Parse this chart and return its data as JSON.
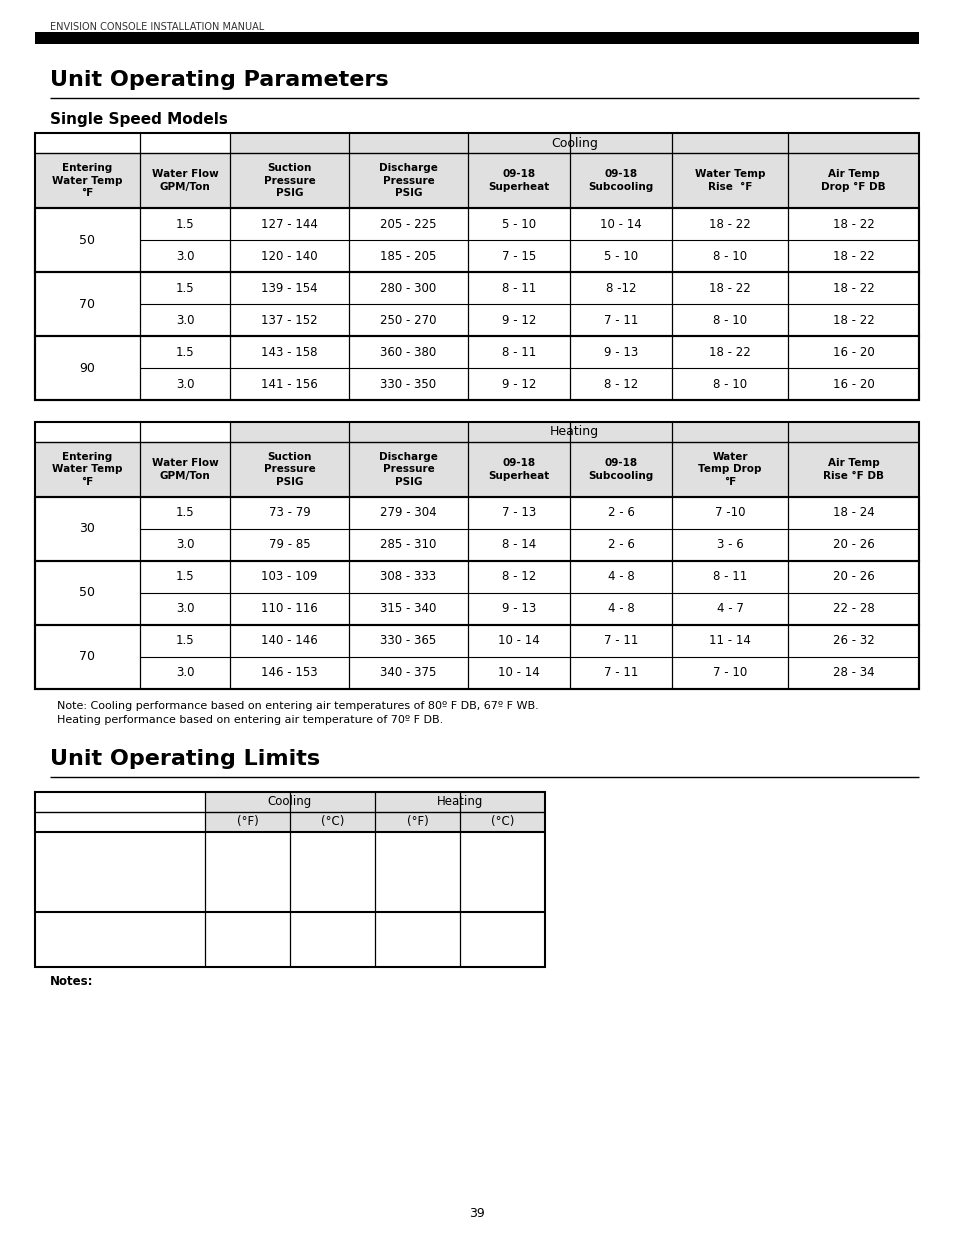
{
  "page_header": "ENVISION CONSOLE INSTALLATION MANUAL",
  "title1": "Unit Operating Parameters",
  "subtitle1": "Single Speed Models",
  "title2": "Unit Operating Limits",
  "cooling_col_headers": [
    "Entering\nWater Temp\n°F",
    "Water Flow\nGPM/Ton",
    "Suction\nPressure\nPSIG",
    "Discharge\nPressure\nPSIG",
    "09-18\nSuperheat",
    "09-18\nSubcooling",
    "Water Temp\nRise  °F",
    "Air Temp\nDrop °F DB"
  ],
  "cooling_rows": [
    [
      "50",
      "1.5",
      "127 - 144",
      "205 - 225",
      "5 - 10",
      "10 - 14",
      "18 - 22",
      "18 - 22"
    ],
    [
      "50",
      "3.0",
      "120 - 140",
      "185 - 205",
      "7 - 15",
      "5 - 10",
      "8 - 10",
      "18 - 22"
    ],
    [
      "70",
      "1.5",
      "139 - 154",
      "280 - 300",
      "8 - 11",
      "8 -12",
      "18 - 22",
      "18 - 22"
    ],
    [
      "70",
      "3.0",
      "137 - 152",
      "250 - 270",
      "9 - 12",
      "7 - 11",
      "8 - 10",
      "18 - 22"
    ],
    [
      "90",
      "1.5",
      "143 - 158",
      "360 - 380",
      "8 - 11",
      "9 - 13",
      "18 - 22",
      "16 - 20"
    ],
    [
      "90",
      "3.0",
      "141 - 156",
      "330 - 350",
      "9 - 12",
      "8 - 12",
      "8 - 10",
      "16 - 20"
    ]
  ],
  "cooling_groups": [
    {
      "temp": "50",
      "rows": [
        0,
        1
      ]
    },
    {
      "temp": "70",
      "rows": [
        2,
        3
      ]
    },
    {
      "temp": "90",
      "rows": [
        4,
        5
      ]
    }
  ],
  "heating_col_headers": [
    "Entering\nWater Temp\n°F",
    "Water Flow\nGPM/Ton",
    "Suction\nPressure\nPSIG",
    "Discharge\nPressure\nPSIG",
    "09-18\nSuperheat",
    "09-18\nSubcooling",
    "Water\nTemp Drop\n°F",
    "Air Temp\nRise °F DB"
  ],
  "heating_rows": [
    [
      "30",
      "1.5",
      "73 - 79",
      "279 - 304",
      "7 - 13",
      "2 - 6",
      "7 -10",
      "18 - 24"
    ],
    [
      "30",
      "3.0",
      "79 - 85",
      "285 - 310",
      "8 - 14",
      "2 - 6",
      "3 - 6",
      "20 - 26"
    ],
    [
      "50",
      "1.5",
      "103 - 109",
      "308 - 333",
      "8 - 12",
      "4 - 8",
      "8 - 11",
      "20 - 26"
    ],
    [
      "50",
      "3.0",
      "110 - 116",
      "315 - 340",
      "9 - 13",
      "4 - 8",
      "4 - 7",
      "22 - 28"
    ],
    [
      "70",
      "1.5",
      "140 - 146",
      "330 - 365",
      "10 - 14",
      "7 - 11",
      "11 - 14",
      "26 - 32"
    ],
    [
      "70",
      "3.0",
      "146 - 153",
      "340 - 375",
      "10 - 14",
      "7 - 11",
      "7 - 10",
      "28 - 34"
    ]
  ],
  "heating_groups": [
    {
      "temp": "30",
      "rows": [
        0,
        1
      ]
    },
    {
      "temp": "50",
      "rows": [
        2,
        3
      ]
    },
    {
      "temp": "70",
      "rows": [
        4,
        5
      ]
    }
  ],
  "note_line1": "  Note: Cooling performance based on entering air temperatures of 80º F DB, 67º F WB.",
  "note_line2": "  Heating performance based on entering air temperature of 70º F DB.",
  "notes_label": "Notes:",
  "page_number": "39"
}
